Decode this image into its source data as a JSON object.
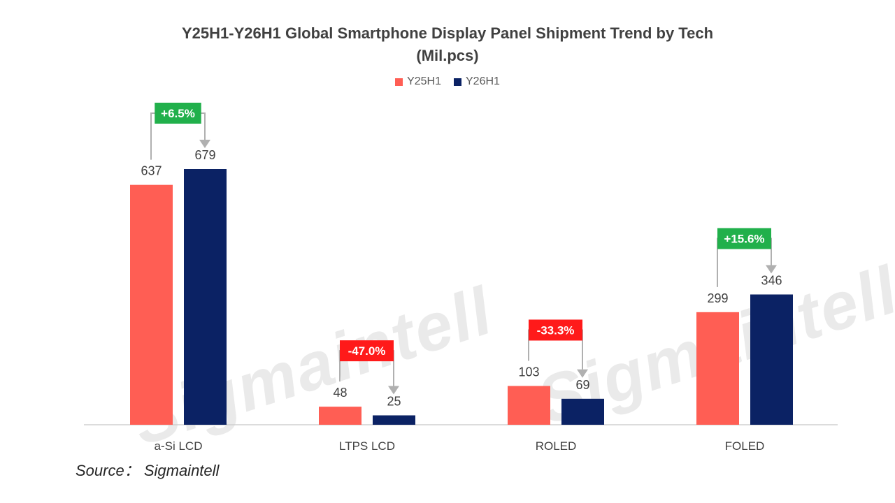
{
  "title_line1": "Y25H1-Y26H1 Global Smartphone Display Panel Shipment Trend by Tech",
  "title_line2": "(Mil.pcs)",
  "source": "Source： Sigmaintell",
  "watermark": "Sigmaintell",
  "colors": {
    "y25": "#FF5E54",
    "y26": "#0B2264",
    "badge_up": "#21B04B",
    "badge_down": "#FF1A1A"
  },
  "chart_data": {
    "type": "bar",
    "title": "Y25H1-Y26H1 Global Smartphone Display Panel Shipment Trend by Tech (Mil.pcs)",
    "categories": [
      "a-Si LCD",
      "LTPS LCD",
      "ROLED",
      "FOLED"
    ],
    "series": [
      {
        "name": "Y25H1",
        "values": [
          637,
          48,
          103,
          299
        ]
      },
      {
        "name": "Y26H1",
        "values": [
          679,
          25,
          69,
          346
        ]
      }
    ],
    "changes": [
      "+6.5%",
      "-47.0%",
      "-33.3%",
      "+15.6%"
    ],
    "legend_position": "top",
    "grid": false
  }
}
